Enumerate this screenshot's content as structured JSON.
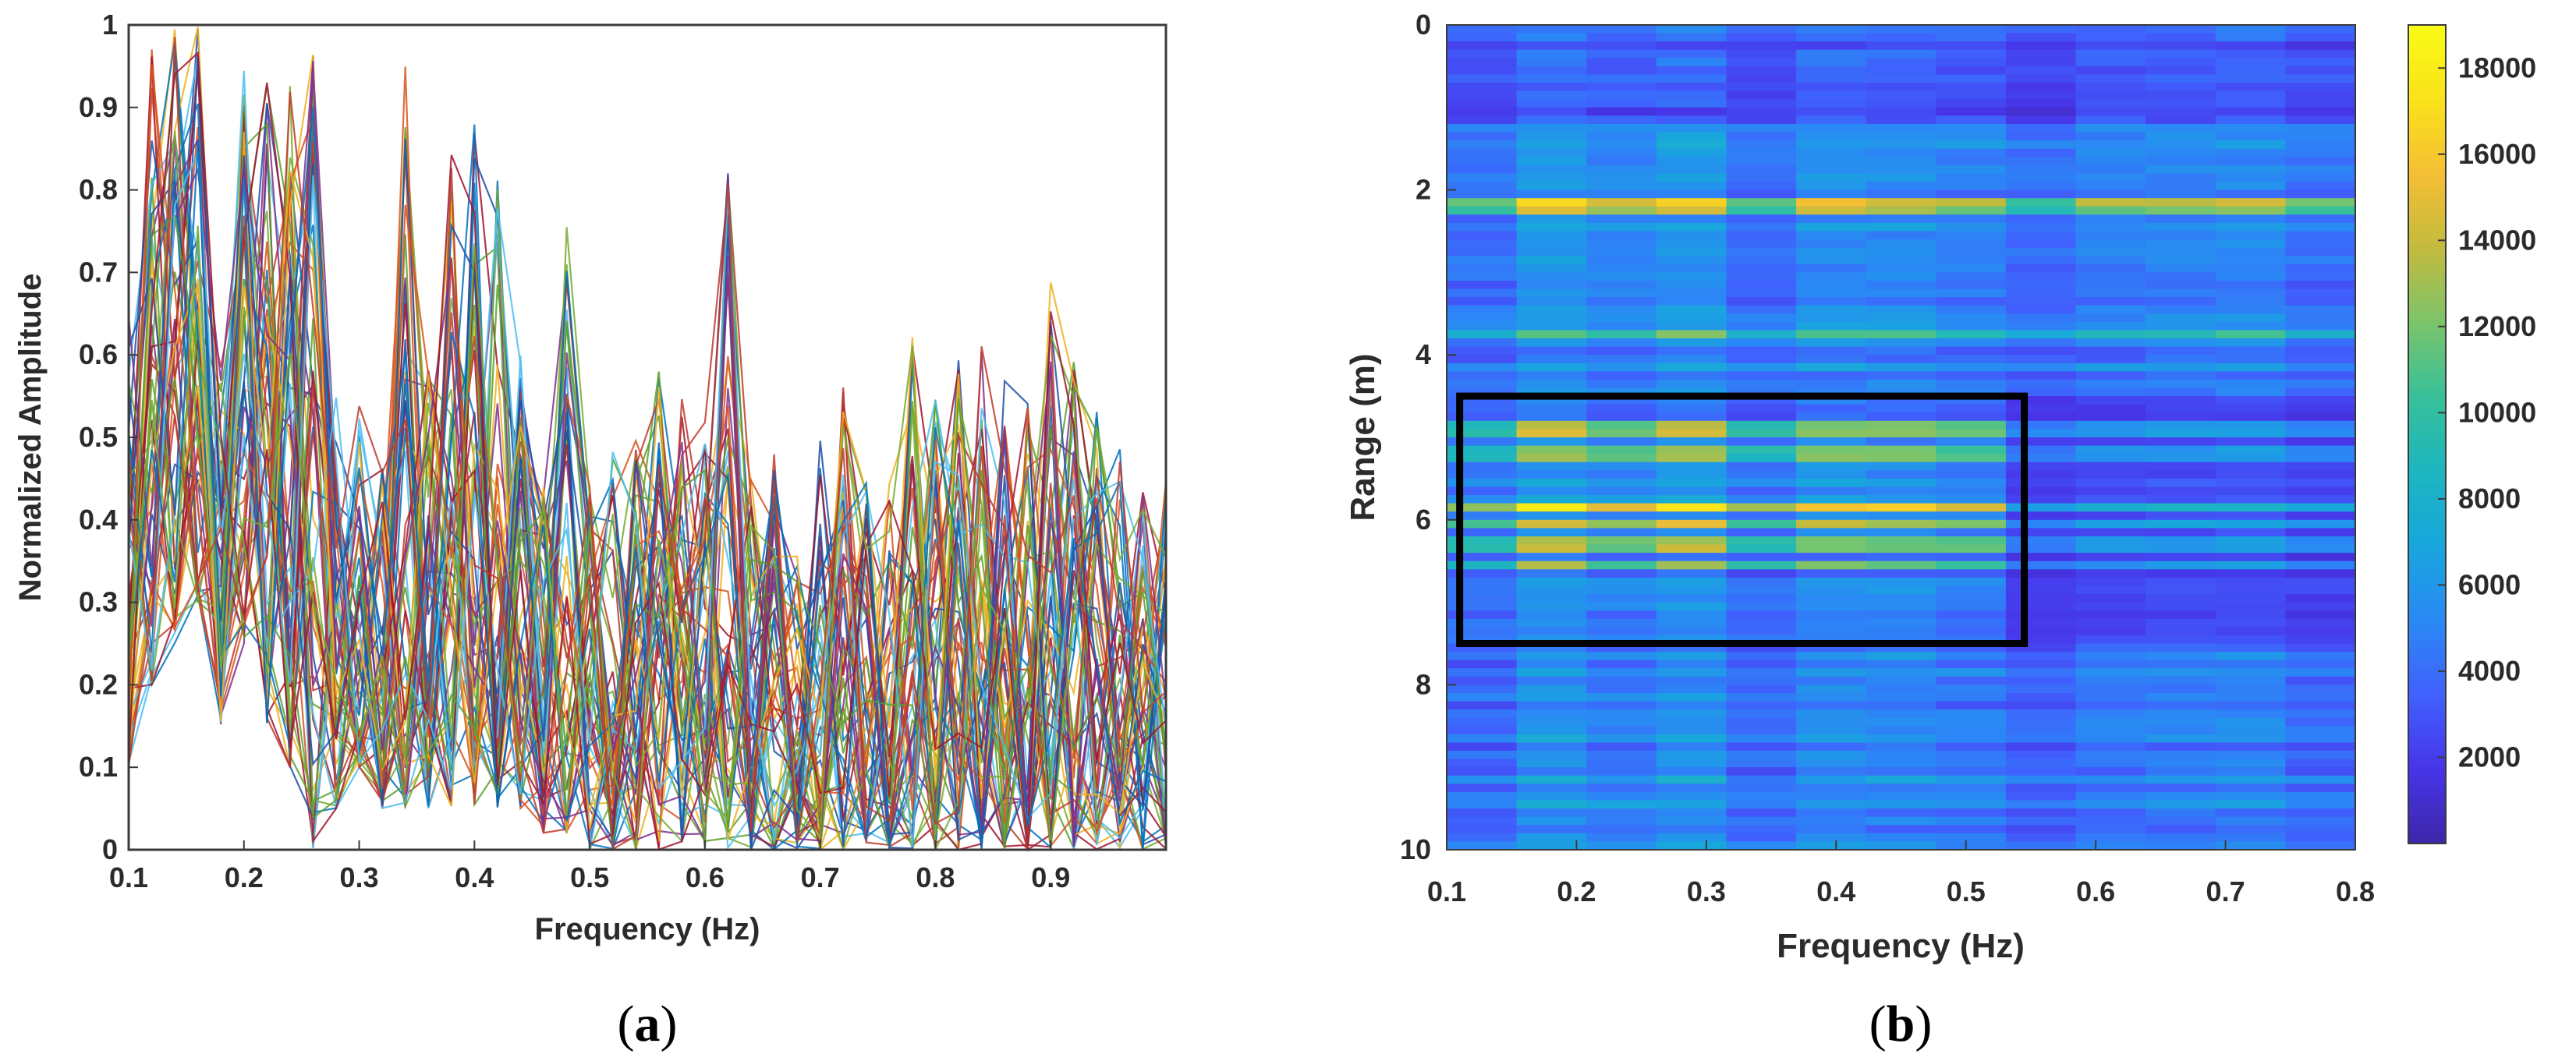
{
  "chart_data": [
    {
      "type": "line",
      "caption_open": "(",
      "caption_letter": "a",
      "caption_close": ")",
      "xlabel": "Frequency (Hz)",
      "ylabel": "Normalized Amplitude",
      "xlim": [
        0.1,
        1.0
      ],
      "ylim": [
        0,
        1
      ],
      "xticks": [
        "0.1",
        "0.2",
        "0.3",
        "0.4",
        "0.5",
        "0.6",
        "0.7",
        "0.8",
        "0.9"
      ],
      "yticks": [
        "0",
        "0.1",
        "0.2",
        "0.3",
        "0.4",
        "0.5",
        "0.6",
        "0.7",
        "0.8",
        "0.9",
        "1"
      ],
      "grid": false,
      "series_count": 10,
      "x": [
        0.1,
        0.12,
        0.14,
        0.16,
        0.18,
        0.2,
        0.22,
        0.24,
        0.26,
        0.28,
        0.3,
        0.32,
        0.34,
        0.36,
        0.38,
        0.4,
        0.42,
        0.44,
        0.46,
        0.48,
        0.5,
        0.52,
        0.54,
        0.56,
        0.58,
        0.6,
        0.62,
        0.64,
        0.66,
        0.68,
        0.7,
        0.72,
        0.74,
        0.76,
        0.78,
        0.8,
        0.82,
        0.84,
        0.86,
        0.88,
        0.9,
        0.92,
        0.94,
        0.96,
        0.98,
        1.0
      ],
      "envelope_max": [
        0.65,
        1.0,
        1.0,
        1.0,
        0.6,
        1.0,
        0.95,
        0.98,
        0.98,
        0.55,
        0.57,
        0.5,
        0.97,
        0.6,
        0.9,
        0.88,
        0.82,
        0.66,
        0.45,
        0.76,
        0.45,
        0.5,
        0.5,
        0.59,
        0.55,
        0.55,
        0.85,
        0.45,
        0.48,
        0.38,
        0.5,
        0.58,
        0.45,
        0.45,
        0.64,
        0.55,
        0.62,
        0.62,
        0.6,
        0.55,
        0.7,
        0.6,
        0.55,
        0.5,
        0.45,
        0.45
      ],
      "envelope_min": [
        0.1,
        0.2,
        0.25,
        0.3,
        0.15,
        0.25,
        0.15,
        0.1,
        0.0,
        0.05,
        0.1,
        0.05,
        0.05,
        0.05,
        0.05,
        0.05,
        0.05,
        0.05,
        0.02,
        0.02,
        0.0,
        0.0,
        0.0,
        0.0,
        0.0,
        0.0,
        0.0,
        0.0,
        0.0,
        0.0,
        0.0,
        0.0,
        0.0,
        0.0,
        0.0,
        0.0,
        0.0,
        0.0,
        0.0,
        0.0,
        0.0,
        0.0,
        0.0,
        0.0,
        0.0,
        0.0
      ],
      "colors": [
        "#1f4fa8",
        "#d9531e",
        "#edb120",
        "#7e2f8e",
        "#5aa02c",
        "#4dbeee",
        "#a2142f",
        "#0072bd",
        "#77ac30",
        "#c0392b"
      ]
    },
    {
      "type": "heatmap",
      "caption_open": "(",
      "caption_letter": "b",
      "caption_close": ")",
      "xlabel": "Frequency (Hz)",
      "ylabel": "Range (m)",
      "xlim": [
        0.1,
        0.8
      ],
      "ylim": [
        0,
        10
      ],
      "y_reversed": true,
      "xticks": [
        "0.1",
        "0.2",
        "0.3",
        "0.4",
        "0.5",
        "0.6",
        "0.7",
        "0.8"
      ],
      "yticks": [
        "0",
        "2",
        "4",
        "6",
        "8",
        "10"
      ],
      "colorbar": {
        "min": 0,
        "max": 19000,
        "ticks": [
          "2000",
          "4000",
          "6000",
          "8000",
          "10000",
          "12000",
          "14000",
          "16000",
          "18000"
        ],
        "colormap": [
          "#3e26a8",
          "#4735e8",
          "#4060fd",
          "#2a89f4",
          "#18a6dd",
          "#1db5c0",
          "#37c09a",
          "#7bc46b",
          "#c2bb3e",
          "#f5be35",
          "#f9e21a",
          "#f9fb15"
        ]
      },
      "columns": 13,
      "rows": 100,
      "bright_rows": [
        {
          "range_m": 2.15,
          "level": 13500
        },
        {
          "range_m": 2.25,
          "level": 12000
        },
        {
          "range_m": 3.7,
          "level": 9500
        },
        {
          "range_m": 4.85,
          "level": 10500
        },
        {
          "range_m": 4.95,
          "level": 11500
        },
        {
          "range_m": 5.2,
          "level": 10500
        },
        {
          "range_m": 5.85,
          "level": 14500
        },
        {
          "range_m": 6.0,
          "level": 12000
        },
        {
          "range_m": 6.3,
          "level": 11000
        },
        {
          "range_m": 6.6,
          "level": 10500
        }
      ],
      "highlight_box": {
        "x": [
          0.11,
          0.545
        ],
        "y": [
          4.5,
          7.5
        ],
        "color": "#000000"
      }
    }
  ]
}
